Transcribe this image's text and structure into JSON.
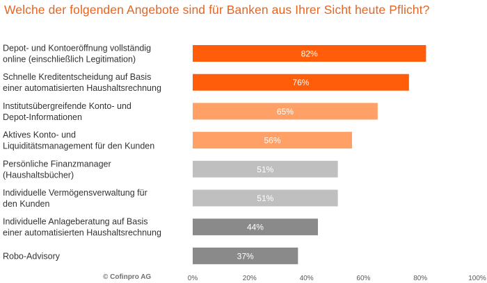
{
  "chart_data": {
    "type": "bar",
    "orientation": "horizontal",
    "title": "Welche der folgenden Angebote sind für Banken aus Ihrer Sicht heute Pflicht?",
    "categories": [
      [
        "Depot- und Kontoeröffnung vollständig",
        "online (einschließlich Legitimation)"
      ],
      [
        "Schnelle Kreditentscheidung auf Basis",
        "einer automatisierten Haushaltsrechnung"
      ],
      [
        "Institutsübergreifende Konto- und",
        "Depot-Informationen"
      ],
      [
        "Aktives Konto- und",
        "Liquiditätsmanagement für den Kunden"
      ],
      [
        "Persönliche Finanzmanager",
        "(Haushaltsbücher)"
      ],
      [
        "Individuelle Vermögensverwaltung für",
        "den Kunden"
      ],
      [
        "Individuelle Anlageberatung auf Basis",
        "einer automatisierten Haushaltsrechnung"
      ],
      [
        "Robo-Advisory"
      ]
    ],
    "values": [
      82,
      76,
      65,
      56,
      51,
      51,
      44,
      37
    ],
    "value_labels": [
      "82%",
      "76%",
      "65%",
      "56%",
      "51%",
      "51%",
      "44%",
      "37%"
    ],
    "bar_colors": [
      "#ff5d0a",
      "#ff5d0a",
      "#ffa066",
      "#ffa066",
      "#bfbfbf",
      "#bfbfbf",
      "#8a8a8a",
      "#8a8a8a"
    ],
    "xlim": [
      0,
      100
    ],
    "x_ticks": [
      "0%",
      "20%",
      "40%",
      "60%",
      "80%",
      "100%"
    ],
    "grid": false,
    "legend": "none"
  },
  "footer": {
    "copyright": "© Cofinpro AG"
  },
  "colors": {
    "title": "#e8641e",
    "text": "#333333",
    "value_text": "#ffffff"
  }
}
